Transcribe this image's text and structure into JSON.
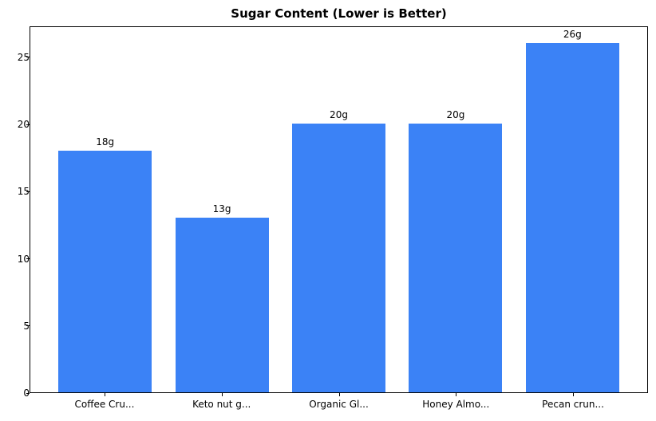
{
  "chart_data": {
    "type": "bar",
    "title": "Sugar Content (Lower is Better)",
    "categories": [
      "Coffee Cru...",
      "Keto nut g...",
      "Organic Gl...",
      "Honey Almo...",
      "Pecan crun..."
    ],
    "values": [
      18,
      13,
      20,
      20,
      26
    ],
    "bar_labels": [
      "18g",
      "13g",
      "20g",
      "20g",
      "26g"
    ],
    "yticks": [
      0,
      5,
      10,
      15,
      20,
      25
    ],
    "ylim": [
      0,
      27.3
    ],
    "xlabel": "",
    "ylabel": "",
    "bar_color": "#3b82f6",
    "axis_color": "#000000",
    "background_color": "#ffffff",
    "grid": false,
    "legend": false,
    "bar_width_fraction": 0.8
  }
}
